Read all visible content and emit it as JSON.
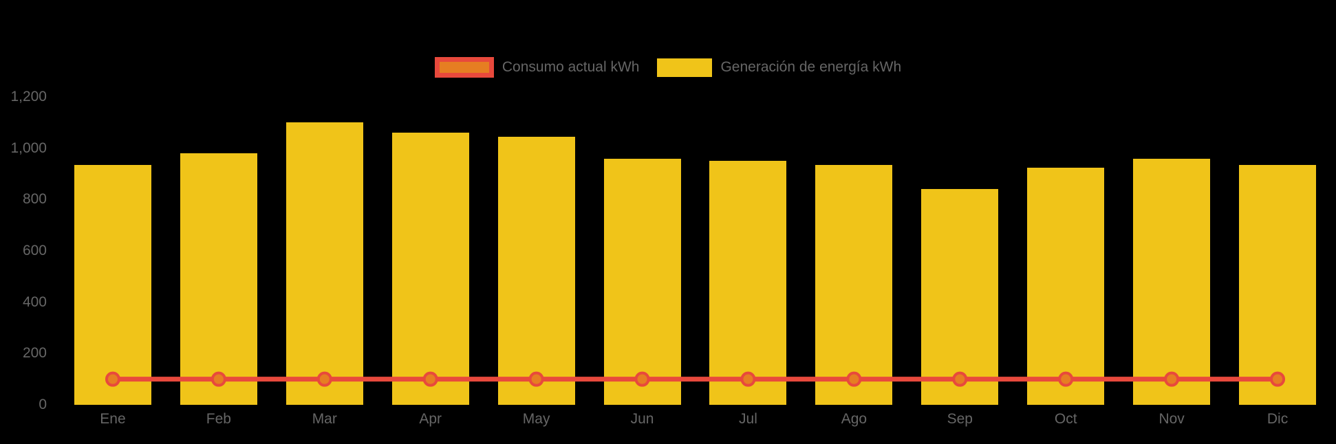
{
  "chart_data": {
    "type": "bar",
    "categories": [
      "Ene",
      "Feb",
      "Mar",
      "Apr",
      "May",
      "Jun",
      "Jul",
      "Ago",
      "Sep",
      "Oct",
      "Nov",
      "Dic"
    ],
    "series": [
      {
        "name": "Consumo actual kWh",
        "type": "line",
        "values": [
          100,
          100,
          100,
          100,
          100,
          100,
          100,
          100,
          100,
          100,
          100,
          100
        ],
        "line_color": "#E8493C",
        "marker_fill": "#E67E22"
      },
      {
        "name": "Generación de energía kWh",
        "type": "bar",
        "values": [
          935,
          980,
          1100,
          1060,
          1045,
          960,
          950,
          935,
          840,
          925,
          960,
          935
        ],
        "bar_color": "#F0C419"
      }
    ],
    "ylim": [
      0,
      1200
    ],
    "yticks": [
      0,
      200,
      400,
      600,
      800,
      1000,
      1200
    ],
    "ytick_labels": [
      "0",
      "200",
      "400",
      "600",
      "800",
      "1,000",
      "1,200"
    ],
    "xlabel": "",
    "ylabel": "",
    "title": "",
    "grid": false,
    "legend_position": "top-center",
    "background_color": "#000000",
    "axis_text_color": "#666666"
  }
}
